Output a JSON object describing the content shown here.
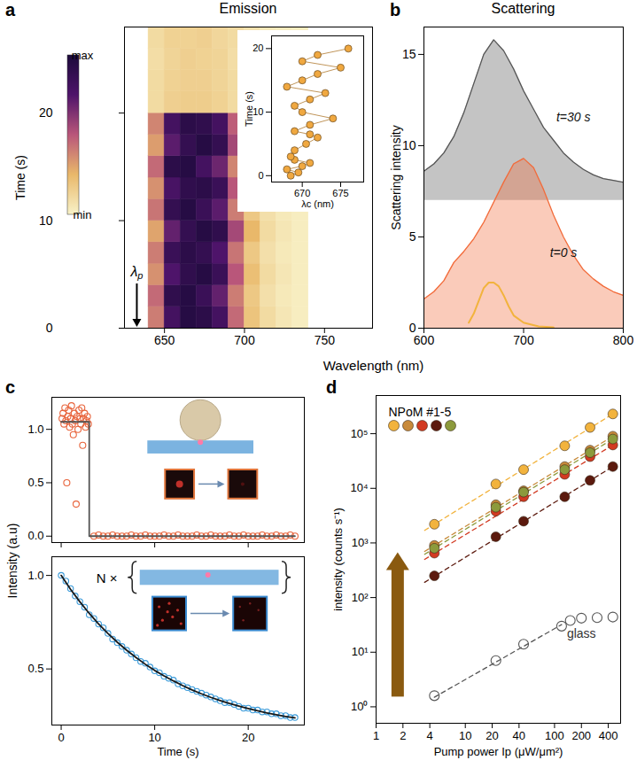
{
  "chart_data": [
    {
      "panel": "a",
      "type": "heatmap",
      "title": "Emission",
      "xlabel": "Wavelength (nm)",
      "ylabel": "Time (s)",
      "xlim": [
        625,
        780
      ],
      "xticks": [
        650,
        700,
        750
      ],
      "ylim": [
        0,
        28
      ],
      "yticks": [
        0,
        10,
        20
      ],
      "x": [
        645,
        655,
        665,
        675,
        685,
        695,
        705,
        715,
        725,
        735
      ],
      "y": [
        1,
        3,
        5,
        7,
        9,
        11,
        13,
        15,
        17,
        19,
        21,
        23,
        25,
        27
      ],
      "cells": [
        [
          0.4,
          0.8,
          0.95,
          0.92,
          0.8,
          0.45,
          0.2,
          0.1,
          0.05,
          0.02
        ],
        [
          0.45,
          0.9,
          0.95,
          0.85,
          0.7,
          0.4,
          0.18,
          0.08,
          0.04,
          0.02
        ],
        [
          0.35,
          0.75,
          0.9,
          0.95,
          0.85,
          0.5,
          0.22,
          0.1,
          0.05,
          0.02
        ],
        [
          0.4,
          0.85,
          0.92,
          0.88,
          0.75,
          0.42,
          0.18,
          0.08,
          0.04,
          0.02
        ],
        [
          0.3,
          0.7,
          0.88,
          0.95,
          0.9,
          0.55,
          0.25,
          0.1,
          0.05,
          0.02
        ],
        [
          0.42,
          0.88,
          0.95,
          0.85,
          0.72,
          0.4,
          0.18,
          0.08,
          0.04,
          0.02
        ],
        [
          0.35,
          0.78,
          0.9,
          0.92,
          0.85,
          0.5,
          0.22,
          0.1,
          0.05,
          0.02
        ],
        [
          0.45,
          0.92,
          0.95,
          0.8,
          0.68,
          0.38,
          0.16,
          0.08,
          0.04,
          0.02
        ],
        [
          0.32,
          0.72,
          0.88,
          0.95,
          0.88,
          0.55,
          0.25,
          0.1,
          0.05,
          0.02
        ],
        [
          0.38,
          0.8,
          0.92,
          0.9,
          0.8,
          0.48,
          0.2,
          0.09,
          0.04,
          0.02
        ],
        [
          0.1,
          0.15,
          0.16,
          0.16,
          0.14,
          0.1,
          0.07,
          0.04,
          0.03,
          0.02
        ],
        [
          0.1,
          0.14,
          0.15,
          0.15,
          0.13,
          0.1,
          0.07,
          0.04,
          0.03,
          0.02
        ],
        [
          0.09,
          0.13,
          0.15,
          0.14,
          0.13,
          0.09,
          0.06,
          0.04,
          0.03,
          0.02
        ],
        [
          0.1,
          0.14,
          0.14,
          0.15,
          0.12,
          0.1,
          0.07,
          0.04,
          0.03,
          0.02
        ]
      ],
      "colorbar": {
        "range": [
          0,
          1
        ],
        "ticks": [
          {
            "value": 0,
            "label": "min"
          },
          {
            "value": 1,
            "label": "max"
          }
        ],
        "colors": [
          "#f8f2c8",
          "#e9b86a",
          "#b9567a",
          "#4e146a",
          "#1c0a3a"
        ]
      },
      "annotations": [
        {
          "text": "λp",
          "x": 633
        }
      ]
    },
    {
      "type": "line",
      "marker": "circle",
      "color": "#f0a840",
      "xlabel": "λc (nm)",
      "ylabel": "Time (s)",
      "xlim": [
        666,
        678
      ],
      "xticks": [
        670,
        675
      ],
      "ylim": [
        -1,
        22
      ],
      "yticks": [
        0,
        10,
        20
      ],
      "x": [
        668.5,
        669.5,
        668,
        670,
        671,
        669,
        668.5,
        669,
        670.5,
        672,
        671,
        669,
        671,
        674,
        670,
        669,
        671,
        673,
        668,
        670,
        672,
        675,
        670,
        672,
        676
      ],
      "values": [
        0,
        0.5,
        1,
        1.5,
        2,
        2.5,
        3,
        4,
        5,
        6,
        6.5,
        7,
        8,
        9,
        10,
        11,
        12,
        13,
        14,
        15,
        16,
        17,
        18,
        19,
        20
      ]
    },
    {
      "panel": "b",
      "type": "area",
      "title": "Scattering",
      "ylabel": "Scattering intensity",
      "xlim": [
        600,
        800
      ],
      "xticks": [
        600,
        700,
        800
      ],
      "ylim": [
        0,
        16.5
      ],
      "yticks": [
        0,
        5,
        10,
        15
      ],
      "series": [
        {
          "name": "t=30 s",
          "color": "#555555",
          "baseline": 7,
          "x": [
            600,
            610,
            620,
            630,
            640,
            650,
            660,
            670,
            680,
            690,
            700,
            710,
            720,
            730,
            740,
            750,
            760,
            770,
            780,
            790,
            800
          ],
          "values": [
            8.6,
            9.0,
            9.6,
            10.5,
            11.8,
            13.4,
            15.0,
            15.8,
            15.2,
            14.2,
            13.0,
            12.0,
            11.0,
            10.3,
            9.6,
            9.1,
            8.7,
            8.4,
            8.2,
            8.1,
            8.0
          ]
        },
        {
          "name": "t=0 s",
          "color": "#f26b3a",
          "baseline": 0,
          "x": [
            600,
            610,
            620,
            630,
            640,
            650,
            660,
            670,
            680,
            690,
            700,
            710,
            720,
            730,
            740,
            750,
            760,
            770,
            780,
            790,
            800
          ],
          "values": [
            1.6,
            2.0,
            2.6,
            3.6,
            4.2,
            4.9,
            5.8,
            6.9,
            8.0,
            9.0,
            9.3,
            8.8,
            7.6,
            6.2,
            5.0,
            4.0,
            3.2,
            2.7,
            2.3,
            2.0,
            1.8
          ]
        },
        {
          "type": "line",
          "color": "#f2b33d",
          "x": [
            645,
            650,
            655,
            660,
            665,
            670,
            675,
            680,
            685,
            690,
            700,
            715,
            730
          ],
          "values": [
            0.3,
            0.8,
            1.5,
            2.2,
            2.5,
            2.5,
            2.3,
            1.8,
            1.2,
            0.7,
            0.3,
            0.1,
            0.05
          ]
        }
      ]
    },
    {
      "panel": "c",
      "type": "scatter",
      "ylabel": "Intensity (a.u)",
      "tick_labels": "y",
      "xlim": [
        -1,
        26
      ],
      "xticks": [
        0,
        10,
        20
      ],
      "ylim": [
        -0.06,
        1.3
      ],
      "yticks": [
        {
          "value": 0,
          "label": "0.0"
        },
        {
          "value": 0.5,
          "label": "0.5"
        },
        {
          "value": 1,
          "label": "1.0"
        }
      ],
      "series": [
        {
          "color": "#e8643c",
          "marker": "open_circle",
          "x": [
            0.1,
            0.2,
            0.3,
            0.4,
            0.5,
            0.6,
            0.7,
            0.8,
            0.9,
            1,
            1.1,
            1.2,
            1.3,
            1.4,
            1.5,
            1.6,
            1.7,
            1.8,
            1.9,
            2,
            2.1,
            2.2,
            2.3,
            2.4,
            2.5,
            2.6,
            2.7,
            2.8,
            2.9,
            3.5,
            4,
            4.5,
            5,
            5.5,
            6,
            6.5,
            7,
            7.5,
            8,
            8.5,
            9,
            9.5,
            10,
            10.5,
            11,
            11.5,
            12,
            12.5,
            13,
            13.5,
            14,
            14.5,
            15,
            15.5,
            16,
            16.5,
            17,
            17.5,
            18,
            18.5,
            19,
            19.5,
            20,
            20.5,
            21,
            21.5,
            22,
            22.5,
            23,
            23.5,
            24,
            24.5,
            25
          ],
          "values": [
            1.1,
            1.15,
            1.05,
            1.2,
            1.08,
            0.5,
            1.12,
            1.18,
            1.02,
            1.1,
            1.22,
            1.05,
            0.95,
            1.15,
            1.08,
            0.3,
            1.12,
            1.0,
            1.18,
            1.1,
            1.05,
            1.2,
            0.85,
            1.1,
            1.15,
            1.02,
            1.08,
            1.12,
            1.05,
            0,
            0.01,
            0,
            0,
            0.01,
            0,
            0,
            0,
            0.01,
            0,
            0,
            0.01,
            0,
            0,
            0,
            0.01,
            0,
            0,
            0.01,
            0,
            0,
            0,
            0.01,
            0,
            0,
            0.01,
            0,
            0,
            0,
            0.01,
            0,
            0,
            0.01,
            0,
            0,
            0,
            0.01,
            0,
            0,
            0.01,
            0,
            0,
            0.01,
            0
          ]
        },
        {
          "type": "line",
          "line_style": "solid",
          "color": "#555555",
          "x": [
            0,
            3,
            3,
            25
          ],
          "values": [
            1.07,
            1.07,
            0,
            0
          ]
        }
      ]
    },
    {
      "type": "scatter",
      "xlabel": "Time (s)",
      "xlim": [
        -1,
        26
      ],
      "xticks": [
        0,
        10,
        20
      ],
      "ylim": [
        0.2,
        1.1
      ],
      "yticks": [
        {
          "value": 0.5,
          "label": "0.5"
        },
        {
          "value": 1,
          "label": "1.0"
        }
      ],
      "annotations": [
        {
          "text": "N ×"
        }
      ],
      "series": [
        {
          "color": "#3a9ad9",
          "marker": "open_circle",
          "x": [
            0,
            0.5,
            1,
            1.5,
            2,
            2.5,
            3,
            3.5,
            4,
            4.5,
            5,
            5.5,
            6,
            6.5,
            7,
            7.5,
            8,
            8.5,
            9,
            9.5,
            10,
            10.5,
            11,
            11.5,
            12,
            12.5,
            13,
            13.5,
            14,
            14.5,
            15,
            15.5,
            16,
            16.5,
            17,
            17.5,
            18,
            18.5,
            19,
            19.5,
            20,
            20.5,
            21,
            21.5,
            22,
            22.5,
            23,
            23.5,
            24,
            24.5,
            25
          ],
          "values": [
            1,
            0.97,
            0.93,
            0.89,
            0.86,
            0.83,
            0.79,
            0.77,
            0.74,
            0.72,
            0.69,
            0.66,
            0.64,
            0.62,
            0.6,
            0.58,
            0.56,
            0.54,
            0.53,
            0.51,
            0.49,
            0.48,
            0.46,
            0.45,
            0.44,
            0.42,
            0.41,
            0.4,
            0.39,
            0.38,
            0.37,
            0.36,
            0.35,
            0.34,
            0.33,
            0.32,
            0.32,
            0.31,
            0.3,
            0.29,
            0.29,
            0.28,
            0.28,
            0.27,
            0.27,
            0.26,
            0.26,
            0.25,
            0.25,
            0.24,
            0.24
          ]
        },
        {
          "type": "line",
          "line_style": "solid",
          "color": "#1a1a1a",
          "x": [
            0,
            1,
            2,
            3,
            4,
            5,
            6,
            7,
            8,
            9,
            10,
            11,
            12,
            13,
            14,
            15,
            16,
            17,
            18,
            19,
            20,
            21,
            22,
            23,
            24,
            25
          ],
          "values": [
            1,
            0.926,
            0.859,
            0.797,
            0.741,
            0.69,
            0.643,
            0.6,
            0.561,
            0.525,
            0.492,
            0.463,
            0.436,
            0.411,
            0.388,
            0.367,
            0.348,
            0.331,
            0.315,
            0.301,
            0.288,
            0.276,
            0.265,
            0.255,
            0.246,
            0.238
          ]
        }
      ]
    },
    {
      "panel": "d",
      "type": "scatter",
      "log": true,
      "legend": "top-left",
      "xlabel": "Pump power Ip (μW/μm²)",
      "ylabel": "intensity (counts s⁻¹)",
      "xlim": [
        1,
        550
      ],
      "xticks": [
        1,
        2,
        4,
        10,
        20,
        40,
        100,
        200,
        400
      ],
      "ylim": [
        0.5,
        500000
      ],
      "yticks": [
        {
          "value": 1,
          "label": "10⁰"
        },
        {
          "value": 10,
          "label": "10¹"
        },
        {
          "value": 100,
          "label": "10²"
        },
        {
          "value": 1000,
          "label": "10³"
        },
        {
          "value": 10000,
          "label": "10⁴"
        },
        {
          "value": 100000,
          "label": "10⁵"
        }
      ],
      "annotations": [
        {
          "text": "NPoM #1-5"
        }
      ],
      "series": [
        {
          "color": "#f2b33d",
          "marker": "circle",
          "line_style": "dashed",
          "x": [
            4.5,
            22,
            45,
            130,
            250,
            450
          ],
          "values": [
            2200,
            12000,
            22000,
            60000,
            130000,
            230000
          ],
          "fit": {
            "x": [
              3.5,
              450
            ],
            "values": [
              1700,
              230000
            ]
          }
        },
        {
          "color": "#c88a3a",
          "marker": "circle",
          "line_style": "dashed",
          "x": [
            4.5,
            22,
            45,
            130,
            250,
            450
          ],
          "values": [
            900,
            5000,
            9000,
            25000,
            50000,
            90000
          ],
          "fit": {
            "x": [
              3.5,
              450
            ],
            "values": [
              700,
              90000
            ]
          }
        },
        {
          "color": "#d23a22",
          "marker": "circle",
          "line_style": "dashed",
          "x": [
            4.5,
            22,
            45,
            130,
            250,
            450
          ],
          "values": [
            650,
            3800,
            7000,
            18000,
            38000,
            62000
          ],
          "fit": {
            "x": [
              3.5,
              450
            ],
            "values": [
              500,
              62000
            ]
          }
        },
        {
          "color": "#5c1a0e",
          "marker": "circle",
          "line_style": "dashed",
          "x": [
            4.5,
            22,
            45,
            130,
            250,
            450
          ],
          "values": [
            250,
            1300,
            2500,
            7000,
            14000,
            25000
          ],
          "fit": {
            "x": [
              3.5,
              450
            ],
            "values": [
              190,
              25000
            ]
          }
        },
        {
          "color": "#8c9a3c",
          "marker": "circle",
          "line_style": "dashed",
          "x": [
            4.5,
            22,
            45,
            130,
            250,
            450
          ],
          "values": [
            800,
            4500,
            8500,
            22000,
            45000,
            80000
          ],
          "fit": {
            "x": [
              3.5,
              450
            ],
            "values": [
              620,
              80000
            ]
          }
        },
        {
          "name": "glass",
          "color": "#555555",
          "marker": "open_circle",
          "line_style": "dashed",
          "x": [
            4.5,
            22,
            45,
            120,
            150,
            200,
            300,
            450
          ],
          "values": [
            1.6,
            7,
            14,
            30,
            38,
            42,
            43,
            44
          ],
          "fit": {
            "x": [
              4.5,
              120
            ],
            "values": [
              1.5,
              32
            ]
          }
        }
      ]
    }
  ]
}
